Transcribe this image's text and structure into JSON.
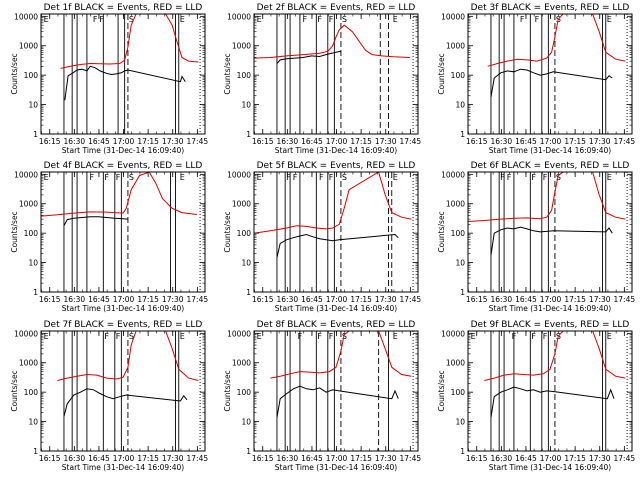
{
  "chart_data": [
    {
      "type": "line",
      "title": "Det 1f BLACK = Events, RED = LLD",
      "ylabel": "Counts/sec",
      "xlabel": "Start Time (31-Dec-14 16:09:40)",
      "x_tick_labels": [
        "16:15",
        "16:30",
        "16:45",
        "17:00",
        "17:15",
        "17:30",
        "17:45"
      ],
      "y_tick_labels": [
        "1",
        "10",
        "100",
        "1000",
        "10000"
      ],
      "y_scale": "log",
      "ylim": [
        1,
        12000
      ],
      "xlim_minutes": [
        0,
        100
      ],
      "marker_labels": [
        "E",
        "F",
        "F",
        "S",
        "E"
      ],
      "series": [
        {
          "name": "Events",
          "color": "#000000",
          "x": [
            14.5,
            16.5,
            19.5,
            22,
            25,
            28,
            30,
            33,
            36,
            40,
            43,
            46,
            49,
            51,
            53,
            85,
            86,
            88
          ],
          "y": [
            14,
            95,
            120,
            150,
            160,
            140,
            200,
            180,
            140,
            115,
            105,
            110,
            120,
            140,
            150,
            60,
            90,
            60
          ]
        },
        {
          "name": "LLD",
          "color": "#dd0000",
          "x": [
            12,
            18,
            24,
            30,
            36,
            42,
            48,
            51,
            53,
            55,
            58,
            76,
            80,
            82,
            86,
            90,
            96
          ],
          "y": [
            170,
            200,
            230,
            250,
            245,
            240,
            250,
            320,
            900,
            5000,
            12000,
            12000,
            5000,
            2000,
            400,
            300,
            280
          ]
        }
      ]
    },
    {
      "type": "line",
      "title": "Det 2f BLACK = Events, RED = LLD",
      "ylabel": "Counts/sec",
      "xlabel": "Start Time (31-Dec-14 16:09:40)",
      "x_tick_labels": [
        "16:15",
        "16:30",
        "16:45",
        "17:00",
        "17:15",
        "17:30",
        "17:45"
      ],
      "y_tick_labels": [
        "1",
        "10",
        "100",
        "1000",
        "10000"
      ],
      "y_scale": "log",
      "ylim": [
        1,
        12000
      ],
      "xlim_minutes": [
        0,
        100
      ],
      "marker_labels": [
        "E",
        "F",
        "F",
        "F",
        "S",
        "E"
      ],
      "series": [
        {
          "name": "Events",
          "color": "#000000",
          "x": [
            14,
            16,
            20,
            25,
            30,
            35,
            40,
            45,
            50,
            53
          ],
          "y": [
            250,
            330,
            360,
            380,
            400,
            450,
            430,
            520,
            600,
            650
          ]
        },
        {
          "name": "LLD",
          "color": "#dd0000",
          "x": [
            0,
            10,
            20,
            30,
            40,
            45,
            48,
            50,
            52,
            55,
            60,
            65,
            68,
            72,
            78,
            85,
            95
          ],
          "y": [
            380,
            400,
            450,
            500,
            560,
            650,
            1000,
            2000,
            3500,
            5000,
            3000,
            1200,
            700,
            500,
            450,
            420,
            400
          ]
        }
      ]
    },
    {
      "type": "line",
      "title": "Det 3f BLACK = Events, RED = LLD",
      "ylabel": "Counts/sec",
      "xlabel": "Start Time (31-Dec-14 16:09:40)",
      "x_tick_labels": [
        "16:15",
        "16:30",
        "16:45",
        "17:00",
        "17:15",
        "17:30",
        "17:45"
      ],
      "y_tick_labels": [
        "1",
        "10",
        "100",
        "1000",
        "10000"
      ],
      "y_scale": "log",
      "ylim": [
        1,
        12000
      ],
      "xlim_minutes": [
        0,
        100
      ],
      "marker_labels": [
        "F",
        "F",
        "S",
        "E"
      ],
      "series": [
        {
          "name": "Events",
          "color": "#000000",
          "x": [
            14,
            16,
            20,
            24,
            28,
            32,
            36,
            40,
            44,
            48,
            52,
            84,
            86,
            88
          ],
          "y": [
            18,
            80,
            120,
            140,
            130,
            160,
            150,
            120,
            100,
            110,
            130,
            70,
            95,
            80
          ]
        },
        {
          "name": "LLD",
          "color": "#dd0000",
          "x": [
            12,
            18,
            24,
            30,
            36,
            42,
            48,
            51,
            53,
            55,
            58,
            76,
            80,
            84,
            90,
            96
          ],
          "y": [
            200,
            250,
            300,
            350,
            330,
            300,
            380,
            600,
            2000,
            8000,
            12000,
            12000,
            3000,
            600,
            350,
            300
          ]
        }
      ]
    },
    {
      "type": "line",
      "title": "Det 4f BLACK = Events, RED = LLD",
      "ylabel": "Counts/sec",
      "xlabel": "Start Time (31-Dec-14 16:09:40)",
      "x_tick_labels": [
        "16:15",
        "16:30",
        "16:45",
        "17:00",
        "17:15",
        "17:30",
        "17:45"
      ],
      "y_tick_labels": [
        "1",
        "10",
        "100",
        "1000",
        "10000"
      ],
      "y_scale": "log",
      "ylim": [
        1,
        12000
      ],
      "xlim_minutes": [
        0,
        100
      ],
      "marker_labels": [
        "E",
        "F",
        "F",
        "F",
        "S",
        "E"
      ],
      "series": [
        {
          "name": "Events",
          "color": "#000000",
          "x": [
            14,
            16,
            20,
            25,
            30,
            35,
            40,
            45,
            50,
            53
          ],
          "y": [
            180,
            290,
            320,
            340,
            360,
            360,
            340,
            320,
            310,
            300
          ]
        },
        {
          "name": "LLD",
          "color": "#dd0000",
          "x": [
            0,
            10,
            20,
            30,
            40,
            45,
            50,
            52,
            55,
            60,
            66,
            70,
            74,
            80,
            86,
            95
          ],
          "y": [
            380,
            420,
            480,
            530,
            520,
            500,
            480,
            700,
            3000,
            9000,
            12000,
            5000,
            1500,
            700,
            500,
            430
          ]
        }
      ]
    },
    {
      "type": "line",
      "title": "Det 5f BLACK = Events, RED = LLD",
      "ylabel": "Counts/sec",
      "xlabel": "Start Time (31-Dec-14 16:09:40)",
      "x_tick_labels": [
        "16:15",
        "16:30",
        "16:45",
        "17:00",
        "17:15",
        "17:30",
        "17:45"
      ],
      "y_tick_labels": [
        "1",
        "10",
        "100",
        "1000",
        "10000"
      ],
      "y_scale": "log",
      "ylim": [
        1,
        12000
      ],
      "xlim_minutes": [
        0,
        100
      ],
      "marker_labels": [
        "E",
        "F",
        "F",
        "F",
        "F",
        "S",
        "E"
      ],
      "series": [
        {
          "name": "Events",
          "color": "#000000",
          "x": [
            14,
            16,
            20,
            24,
            28,
            32,
            36,
            40,
            44,
            48,
            52,
            86,
            88
          ],
          "y": [
            15,
            45,
            60,
            70,
            80,
            90,
            75,
            65,
            60,
            55,
            60,
            90,
            70
          ]
        },
        {
          "name": "LLD",
          "color": "#dd0000",
          "x": [
            0,
            10,
            20,
            26,
            32,
            38,
            44,
            48,
            52,
            55,
            58,
            76,
            80,
            84,
            90,
            96
          ],
          "y": [
            100,
            120,
            150,
            180,
            170,
            150,
            140,
            150,
            200,
            700,
            3000,
            12000,
            2000,
            500,
            350,
            300
          ]
        }
      ]
    },
    {
      "type": "line",
      "title": "Det 6f BLACK = Events, RED = LLD",
      "ylabel": "Counts/sec",
      "xlabel": "Start Time (31-Dec-14 16:09:40)",
      "x_tick_labels": [
        "16:15",
        "16:30",
        "16:45",
        "17:00",
        "17:15",
        "17:30",
        "17:45"
      ],
      "y_tick_labels": [
        "1",
        "10",
        "100",
        "1000",
        "10000"
      ],
      "y_scale": "log",
      "ylim": [
        1,
        12000
      ],
      "xlim_minutes": [
        0,
        100
      ],
      "marker_labels": [
        "F",
        "F",
        "F",
        "F",
        "S",
        "E"
      ],
      "series": [
        {
          "name": "Events",
          "color": "#000000",
          "x": [
            14,
            16,
            20,
            24,
            28,
            32,
            36,
            40,
            44,
            48,
            52,
            84,
            86,
            88
          ],
          "y": [
            18,
            100,
            130,
            150,
            140,
            160,
            140,
            120,
            110,
            115,
            120,
            110,
            150,
            100
          ]
        },
        {
          "name": "LLD",
          "color": "#dd0000",
          "x": [
            0,
            10,
            20,
            28,
            36,
            44,
            48,
            51,
            53,
            55,
            58,
            76,
            80,
            84,
            90,
            96
          ],
          "y": [
            250,
            270,
            300,
            320,
            330,
            310,
            350,
            600,
            2500,
            9000,
            12000,
            12000,
            2000,
            500,
            350,
            300
          ]
        }
      ]
    },
    {
      "type": "line",
      "title": "Det 7f BLACK = Events, RED = LLD",
      "ylabel": "Counts/sec",
      "xlabel": "Start Time (31-Dec-14 16:09:40)",
      "x_tick_labels": [
        "16:15",
        "16:30",
        "16:45",
        "17:00",
        "17:15",
        "17:30",
        "17:45"
      ],
      "y_tick_labels": [
        "1",
        "10",
        "100",
        "1000",
        "10000"
      ],
      "y_scale": "log",
      "ylim": [
        1,
        12000
      ],
      "xlim_minutes": [
        0,
        100
      ],
      "marker_labels": [
        "E",
        "F",
        "F",
        "S",
        "E"
      ],
      "series": [
        {
          "name": "Events",
          "color": "#000000",
          "x": [
            14,
            16,
            20,
            24,
            28,
            32,
            36,
            40,
            44,
            48,
            52,
            85,
            87,
            89
          ],
          "y": [
            15,
            40,
            80,
            100,
            130,
            120,
            90,
            70,
            60,
            70,
            80,
            50,
            75,
            55
          ]
        },
        {
          "name": "LLD",
          "color": "#dd0000",
          "x": [
            10,
            16,
            22,
            28,
            34,
            40,
            46,
            50,
            53,
            55,
            58,
            76,
            80,
            84,
            90,
            96
          ],
          "y": [
            250,
            300,
            350,
            400,
            380,
            300,
            280,
            320,
            700,
            4000,
            12000,
            12000,
            3000,
            600,
            300,
            250
          ]
        }
      ]
    },
    {
      "type": "line",
      "title": "Det 8f BLACK = Events, RED = LLD",
      "ylabel": "Counts/sec",
      "xlabel": "Start Time (31-Dec-14 16:09:40)",
      "x_tick_labels": [
        "16:15",
        "16:30",
        "16:45",
        "17:00",
        "17:15",
        "17:30",
        "17:45"
      ],
      "y_tick_labels": [
        "1",
        "10",
        "100",
        "1000",
        "10000"
      ],
      "y_scale": "log",
      "ylim": [
        1,
        12000
      ],
      "xlim_minutes": [
        0,
        100
      ],
      "marker_labels": [
        "E",
        "F",
        "F",
        "F",
        "S",
        "E"
      ],
      "series": [
        {
          "name": "Events",
          "color": "#000000",
          "x": [
            14,
            16,
            20,
            24,
            28,
            32,
            36,
            40,
            44,
            48,
            52,
            84,
            86,
            88
          ],
          "y": [
            14,
            60,
            90,
            130,
            160,
            130,
            120,
            140,
            100,
            120,
            110,
            60,
            110,
            60
          ]
        },
        {
          "name": "LLD",
          "color": "#dd0000",
          "x": [
            10,
            16,
            22,
            28,
            34,
            40,
            46,
            50,
            53,
            55,
            58,
            76,
            80,
            84,
            90,
            96
          ],
          "y": [
            300,
            350,
            420,
            500,
            480,
            450,
            500,
            700,
            2500,
            9000,
            12000,
            12000,
            3000,
            700,
            400,
            350
          ]
        }
      ]
    },
    {
      "type": "line",
      "title": "Det 9f BLACK = Events, RED = LLD",
      "ylabel": "Counts/sec",
      "xlabel": "Start Time (31-Dec-14 16:09:40)",
      "x_tick_labels": [
        "16:15",
        "16:30",
        "16:45",
        "17:00",
        "17:15",
        "17:30",
        "17:45"
      ],
      "y_tick_labels": [
        "1",
        "10",
        "100",
        "1000",
        "10000"
      ],
      "y_scale": "log",
      "ylim": [
        1,
        12000
      ],
      "xlim_minutes": [
        0,
        100
      ],
      "marker_labels": [
        "E",
        "F",
        "F",
        "F",
        "S",
        "E"
      ],
      "series": [
        {
          "name": "Events",
          "color": "#000000",
          "x": [
            14,
            16,
            20,
            24,
            28,
            32,
            36,
            40,
            44,
            48,
            52,
            85,
            87,
            89
          ],
          "y": [
            14,
            70,
            100,
            120,
            150,
            130,
            110,
            120,
            100,
            110,
            105,
            60,
            120,
            60
          ]
        },
        {
          "name": "LLD",
          "color": "#dd0000",
          "x": [
            10,
            16,
            22,
            28,
            34,
            40,
            46,
            50,
            53,
            55,
            58,
            76,
            80,
            84,
            90,
            96
          ],
          "y": [
            250,
            300,
            380,
            420,
            400,
            380,
            420,
            600,
            2000,
            8000,
            12000,
            12000,
            3000,
            600,
            350,
            300
          ]
        }
      ]
    }
  ]
}
